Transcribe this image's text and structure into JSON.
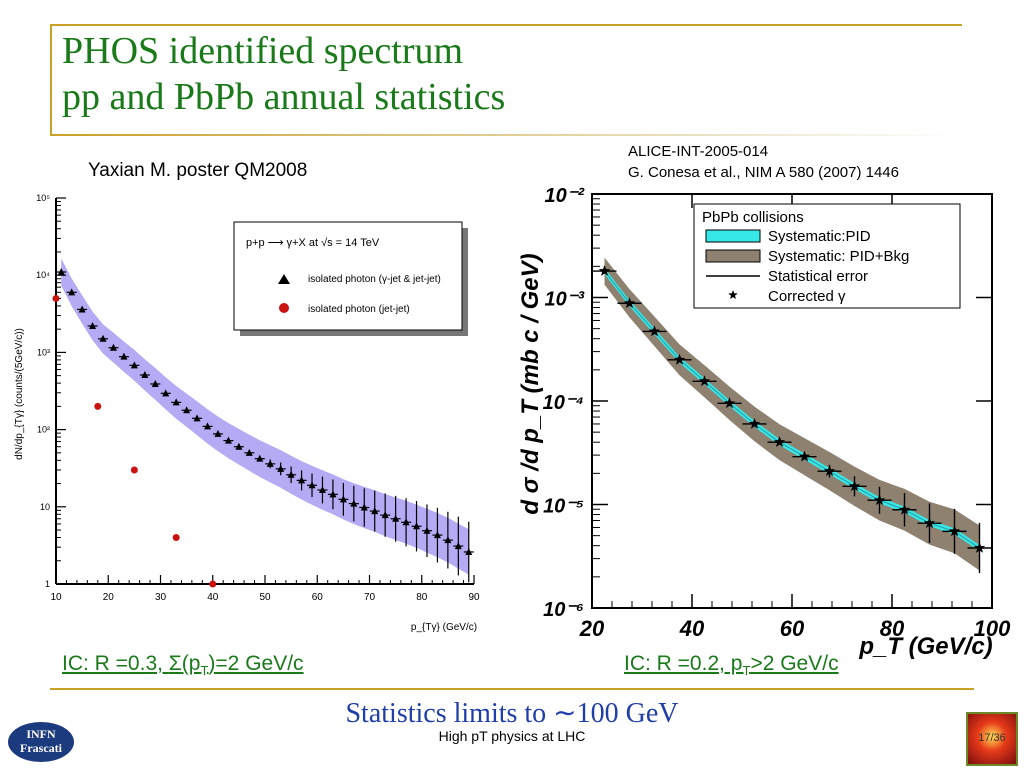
{
  "slide": {
    "title_line1": "PHOS identified spectrum",
    "title_line2": "pp and PbPb annual statistics",
    "left_caption": "Yaxian M. poster QM2008",
    "right_caption_line1": "ALICE-INT-2005-014",
    "right_caption_line2": "G. Conesa et al., NIM A 580 (2007) 1446",
    "left_link_prefix": "IC: R =0.3, ",
    "left_link_sigma": "Σ",
    "left_link_mid": "(p",
    "left_link_sub": "T",
    "left_link_suffix": ")=2 GeV/c",
    "right_link_prefix": "IC: R =0.2, p",
    "right_link_sub": "T",
    "right_link_suffix": ">2 GeV/c",
    "statistics_text": "Statistics limits to ∼100 GeV",
    "footer": "High pT physics at LHC",
    "page_number": "17/36",
    "logo_line1": "INFN",
    "logo_line2": "Frascati",
    "colors": {
      "title": "#1a7a1a",
      "rule": "#c9a028",
      "statistics": "#1f3ea8",
      "band_left": "#a79cf2",
      "band_cyan": "#37e8e8",
      "band_brown": "#8e8170",
      "red_points": "#cc1111"
    }
  },
  "chart_data": [
    {
      "type": "scatter",
      "title": "",
      "xlabel": "p_{Tγ} (GeV/c)",
      "ylabel": "dN/dp_{Tγ} (counts/(5GeV/c))",
      "xlim": [
        10,
        90
      ],
      "ylim": [
        1,
        100000
      ],
      "yscale": "log",
      "xticks": [
        "10",
        "20",
        "30",
        "40",
        "50",
        "60",
        "70",
        "80",
        "90"
      ],
      "yticks": [
        "1",
        "10",
        "10²",
        "10³",
        "10⁴",
        "10⁵"
      ],
      "legend_title": "p+p ⟶ γ+X  at √s = 14 TeV",
      "legend_placement": "top-right",
      "series": [
        {
          "name": "isolated photon (γ-jet & jet-jet)",
          "marker": "triangle",
          "x": [
            11,
            13,
            15,
            17,
            19,
            21,
            23,
            25,
            27,
            29,
            31,
            33,
            35,
            37,
            39,
            41,
            43,
            45,
            47,
            49,
            51,
            53,
            55,
            57,
            59,
            61,
            63,
            65,
            67,
            69,
            71,
            73,
            75,
            77,
            79,
            81,
            83,
            85,
            87,
            89
          ],
          "y": [
            11000,
            6000,
            3600,
            2200,
            1500,
            1150,
            880,
            680,
            510,
            390,
            295,
            225,
            178,
            140,
            110,
            88,
            72,
            60,
            50,
            42,
            36,
            31,
            26,
            22,
            19,
            16.5,
            14.5,
            12.5,
            11,
            9.8,
            8.8,
            7.8,
            7,
            6.3,
            5.6,
            4.9,
            4.3,
            3.7,
            3.1,
            2.6
          ]
        },
        {
          "name": "isolated photon (jet-jet)",
          "marker": "circle",
          "x": [
            10,
            18,
            25,
            33,
            40
          ],
          "y": [
            5000,
            200,
            30,
            4,
            1
          ]
        }
      ]
    },
    {
      "type": "scatter",
      "title": "",
      "xlabel": "p_T (GeV/c)",
      "ylabel": "d σ /d p_T (mb c / GeV)",
      "xlim": [
        20,
        100
      ],
      "ylim": [
        1e-06,
        0.01
      ],
      "yscale": "log",
      "xticks": [
        "20",
        "40",
        "60",
        "80",
        "100"
      ],
      "yticks": [
        "10⁻²",
        "10⁻³",
        "10⁻⁴",
        "10⁻⁵",
        "10⁻⁶"
      ],
      "legend_title": "PbPb collisions",
      "legend_placement": "top-right",
      "legend": [
        "Systematic:PID",
        "Systematic: PID+Bkg",
        "Statistical error",
        "Corrected γ"
      ],
      "series": [
        {
          "name": "Corrected γ",
          "marker": "star",
          "x": [
            22.5,
            27.5,
            32.5,
            37.5,
            42.5,
            47.5,
            52.5,
            57.5,
            62.5,
            67.5,
            72.5,
            77.5,
            82.5,
            87.5,
            92.5,
            97.5
          ],
          "y": [
            0.0018,
            0.00088,
            0.00047,
            0.00025,
            0.000155,
            9.5e-05,
            6e-05,
            4e-05,
            2.9e-05,
            2.1e-05,
            1.5e-05,
            1.1e-05,
            8.9e-06,
            6.6e-06,
            5.5e-06,
            3.8e-06
          ]
        }
      ]
    }
  ]
}
